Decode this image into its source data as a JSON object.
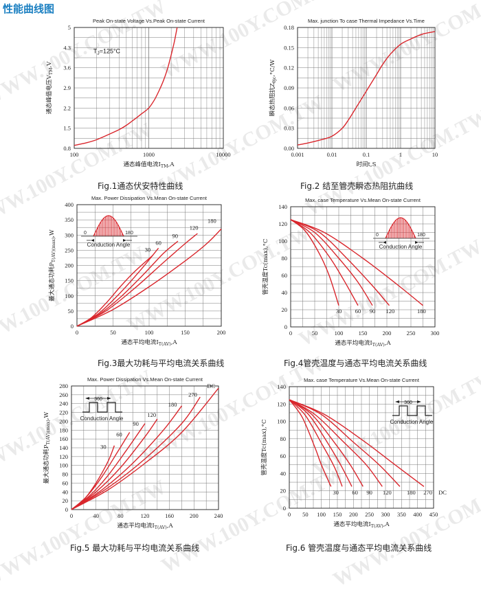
{
  "page": {
    "title": "性能曲线图",
    "watermark": "WWW.100Y.COM.TW"
  },
  "colors": {
    "curve": "#d9262c",
    "axis": "#222222",
    "grid": "#777777",
    "title_blue": "#1a7fc1"
  },
  "captions": [
    "Fig.1通态伏安特性曲线",
    "Fig.2 结至管壳瞬态热阻抗曲线",
    "Fig.3最大功耗与平均电流关系曲线",
    "Fig.4管壳温度与通态平均电流关系曲线",
    "Fig.5 最大功耗与平均电流关系曲线",
    "Fig.6 管壳温度与通态平均电流关系曲线"
  ],
  "chart_data": [
    {
      "type": "line",
      "title": "Peak On-state Voltage Vs.Peak On-state Current",
      "xlabel": "通态峰值电流I_TM,A",
      "ylabel": "通态峰值电压V_TM,V",
      "xscale": "log",
      "xlim": [
        100,
        10000
      ],
      "ylim": [
        0.8,
        5
      ],
      "xticks": [
        100,
        1000,
        10000
      ],
      "xtick_labels": [
        "100",
        "1000",
        "10000"
      ],
      "yticks": [
        0.8,
        1.5,
        2.2,
        2.9,
        3.6,
        4.3,
        5
      ],
      "ytick_labels": [
        "0.8",
        "1.5",
        "2.2",
        "2.9",
        "3.6",
        "4.3",
        "5"
      ],
      "grid": true,
      "annotations": [
        {
          "text": "T_J=125°C",
          "x": 180,
          "y": 4.1
        }
      ],
      "series": [
        {
          "x": [
            100,
            150,
            200,
            300,
            400,
            500,
            600,
            700,
            800,
            1000,
            1200,
            1400,
            1600,
            1800,
            2000,
            2200,
            2400
          ],
          "y": [
            0.9,
            1.0,
            1.1,
            1.3,
            1.45,
            1.6,
            1.75,
            1.88,
            2.0,
            2.2,
            2.5,
            2.85,
            3.2,
            3.6,
            4.05,
            4.5,
            5.0
          ]
        }
      ]
    },
    {
      "type": "line",
      "title": "Max. junction To case Thermal Impedance Vs.Time",
      "xlabel": "时间t,S",
      "ylabel": "瞬态热阻抗Z_θjc,°C/W",
      "xscale": "log",
      "xlim": [
        0.001,
        10
      ],
      "ylim": [
        0,
        0.18
      ],
      "xticks": [
        0.001,
        0.01,
        0.1,
        1,
        10
      ],
      "xtick_labels": [
        "0.001",
        "0.01",
        "0.1",
        "1",
        "10"
      ],
      "yticks": [
        0,
        0.03,
        0.06,
        0.09,
        0.12,
        0.15,
        0.18
      ],
      "ytick_labels": [
        "0.00",
        "0.03",
        "0.06",
        "0.09",
        "0.12",
        "0.15",
        "0.18"
      ],
      "grid": true,
      "series": [
        {
          "x": [
            0.001,
            0.002,
            0.005,
            0.01,
            0.02,
            0.03,
            0.05,
            0.1,
            0.2,
            0.3,
            0.5,
            1,
            2,
            3,
            5,
            10
          ],
          "y": [
            0.005,
            0.008,
            0.013,
            0.018,
            0.03,
            0.042,
            0.06,
            0.085,
            0.11,
            0.125,
            0.14,
            0.155,
            0.163,
            0.167,
            0.171,
            0.174
          ]
        }
      ]
    },
    {
      "type": "line",
      "title": "Max. Power Dissipation Vs.Mean On-state Current",
      "xlabel": "通态平均电流I_T(AV),A",
      "ylabel": "最大通态功耗P_T(AV)(max),W",
      "xlim": [
        0,
        200
      ],
      "ylim": [
        0,
        400
      ],
      "xticks": [
        0,
        50,
        100,
        150,
        200
      ],
      "xtick_labels": [
        "0",
        "50",
        "100",
        "150",
        "200"
      ],
      "yticks": [
        0,
        50,
        100,
        150,
        200,
        250,
        300,
        350,
        400
      ],
      "ytick_labels": [
        "0",
        "50",
        "100",
        "150",
        "200",
        "250",
        "300",
        "350",
        "400"
      ],
      "grid": true,
      "inset": {
        "kind": "sine",
        "labels": [
          "0",
          "180"
        ],
        "caption": "Conduction Angle"
      },
      "series": [
        {
          "name": "30",
          "x": [
            0,
            20,
            40,
            60,
            80,
            105
          ],
          "y": [
            0,
            28,
            75,
            130,
            180,
            233
          ]
        },
        {
          "name": "60",
          "x": [
            0,
            30,
            60,
            90,
            113
          ],
          "y": [
            0,
            42,
            110,
            190,
            257
          ]
        },
        {
          "name": "90",
          "x": [
            0,
            30,
            60,
            90,
            120,
            140
          ],
          "y": [
            0,
            38,
            95,
            165,
            240,
            280
          ]
        },
        {
          "name": "120",
          "x": [
            0,
            40,
            80,
            120,
            150,
            167
          ],
          "y": [
            0,
            50,
            125,
            210,
            272,
            305
          ]
        },
        {
          "name": "180",
          "x": [
            0,
            50,
            100,
            150,
            180,
            200
          ],
          "y": [
            0,
            55,
            130,
            215,
            272,
            320
          ]
        }
      ],
      "series_labels": [
        {
          "text": "30",
          "x": 98,
          "y": 245
        },
        {
          "text": "60",
          "x": 113,
          "y": 268
        },
        {
          "text": "90",
          "x": 136,
          "y": 290
        },
        {
          "text": "120",
          "x": 162,
          "y": 318
        },
        {
          "text": "180",
          "x": 187,
          "y": 340
        }
      ]
    },
    {
      "type": "line",
      "title": "Max. case Temperature Vs.Mean On-state Current",
      "xlabel": "通态平均电流I_T(AV),A",
      "ylabel": "管壳温度Tc(max),°C",
      "xlim": [
        0,
        300
      ],
      "ylim": [
        0,
        140
      ],
      "xticks": [
        0,
        50,
        100,
        150,
        200,
        250,
        300
      ],
      "xtick_labels": [
        "0",
        "50",
        "100",
        "150",
        "200",
        "250",
        "300"
      ],
      "yticks": [
        0,
        20,
        40,
        60,
        80,
        100,
        120,
        140
      ],
      "ytick_labels": [
        "0",
        "20",
        "40",
        "60",
        "80",
        "100",
        "120",
        "140"
      ],
      "grid": true,
      "inset": {
        "kind": "sine",
        "labels": [
          "0",
          "180"
        ],
        "caption": "Conduction Angle"
      },
      "series": [
        {
          "name": "30",
          "x": [
            0,
            30,
            60,
            80,
            100
          ],
          "y": [
            125,
            112,
            85,
            60,
            25
          ]
        },
        {
          "name": "60",
          "x": [
            0,
            40,
            80,
            110,
            140
          ],
          "y": [
            125,
            110,
            82,
            55,
            25
          ]
        },
        {
          "name": "90",
          "x": [
            0,
            50,
            100,
            140,
            170
          ],
          "y": [
            125,
            110,
            80,
            52,
            25
          ]
        },
        {
          "name": "120",
          "x": [
            0,
            60,
            120,
            170,
            205
          ],
          "y": [
            125,
            110,
            78,
            48,
            25
          ]
        },
        {
          "name": "180",
          "x": [
            0,
            70,
            150,
            220,
            275
          ],
          "y": [
            125,
            110,
            80,
            50,
            25
          ]
        }
      ],
      "series_labels": [
        {
          "text": "30",
          "x": 100,
          "y": 16
        },
        {
          "text": "60",
          "x": 140,
          "y": 16
        },
        {
          "text": "90",
          "x": 170,
          "y": 16
        },
        {
          "text": "120",
          "x": 207,
          "y": 16
        },
        {
          "text": "180",
          "x": 272,
          "y": 16
        }
      ]
    },
    {
      "type": "line",
      "title": "Max. Power Dissipation Vs.Mean On-state Current",
      "xlabel": "通态平均电流I_T(AV),A",
      "ylabel": "最大通态功耗P_T(AV)(max),W",
      "xlim": [
        0,
        240
      ],
      "ylim": [
        0,
        280
      ],
      "xticks": [
        0,
        40,
        80,
        120,
        160,
        200,
        240
      ],
      "xtick_labels": [
        "0",
        "40",
        "80",
        "120",
        "160",
        "200",
        "240"
      ],
      "yticks": [
        0,
        20,
        40,
        60,
        80,
        100,
        120,
        140,
        160,
        180,
        200,
        220,
        240,
        260,
        280
      ],
      "ytick_labels": [
        "0",
        "20",
        "40",
        "60",
        "80",
        "100",
        "120",
        "140",
        "160",
        "180",
        "200",
        "220",
        "240",
        "260",
        "280"
      ],
      "grid": true,
      "inset": {
        "kind": "square",
        "labels": [
          "360"
        ],
        "caption": "Conduction Angle"
      },
      "series": [
        {
          "name": "30",
          "x": [
            0,
            20,
            40,
            60,
            70
          ],
          "y": [
            0,
            22,
            60,
            110,
            145
          ]
        },
        {
          "name": "60",
          "x": [
            0,
            25,
            50,
            75,
            95
          ],
          "y": [
            0,
            30,
            75,
            130,
            175
          ]
        },
        {
          "name": "90",
          "x": [
            0,
            30,
            60,
            90,
            120
          ],
          "y": [
            0,
            32,
            78,
            135,
            195
          ]
        },
        {
          "name": "120",
          "x": [
            0,
            40,
            80,
            120,
            140
          ],
          "y": [
            0,
            40,
            95,
            165,
            205
          ]
        },
        {
          "name": "180",
          "x": [
            0,
            50,
            100,
            150,
            180
          ],
          "y": [
            0,
            45,
            105,
            180,
            235
          ]
        },
        {
          "name": "270",
          "x": [
            0,
            60,
            120,
            180,
            210
          ],
          "y": [
            0,
            50,
            115,
            195,
            255
          ]
        },
        {
          "name": "DC",
          "x": [
            0,
            60,
            120,
            180,
            240
          ],
          "y": [
            0,
            45,
            105,
            175,
            275
          ]
        }
      ],
      "series_labels": [
        {
          "text": "30",
          "x": 52,
          "y": 138
        },
        {
          "text": "60",
          "x": 78,
          "y": 166
        },
        {
          "text": "90",
          "x": 105,
          "y": 190
        },
        {
          "text": "120",
          "x": 131,
          "y": 210
        },
        {
          "text": "180",
          "x": 165,
          "y": 233
        },
        {
          "text": "270",
          "x": 198,
          "y": 256
        },
        {
          "text": "DC",
          "x": 228,
          "y": 275
        }
      ]
    },
    {
      "type": "line",
      "title": "Max. case Temperature Vs.Mean On-state Current",
      "xlabel": "通态平均电流I_T(AV),A",
      "ylabel": "管壳温度Tc(max),°C",
      "xlim": [
        0,
        450
      ],
      "ylim": [
        0,
        140
      ],
      "xticks": [
        0,
        50,
        100,
        150,
        200,
        250,
        300,
        350,
        400,
        450
      ],
      "xtick_labels": [
        "0",
        "50",
        "100",
        "150",
        "200",
        "250",
        "300",
        "350",
        "400",
        "450"
      ],
      "yticks": [
        0,
        20,
        40,
        60,
        80,
        100,
        120,
        140
      ],
      "ytick_labels": [
        "0",
        "20",
        "40",
        "60",
        "80",
        "100",
        "120",
        "140"
      ],
      "grid": true,
      "inset": {
        "kind": "square",
        "labels": [
          "360"
        ],
        "caption": "Conduction Angle"
      },
      "series": [
        {
          "name": "30",
          "x": [
            0,
            40,
            80,
            100,
            130
          ],
          "y": [
            125,
            105,
            70,
            50,
            25
          ]
        },
        {
          "name": "60",
          "x": [
            0,
            50,
            100,
            140,
            165
          ],
          "y": [
            125,
            107,
            75,
            48,
            25
          ]
        },
        {
          "name": "90",
          "x": [
            0,
            60,
            120,
            160,
            195
          ],
          "y": [
            125,
            108,
            75,
            50,
            25
          ]
        },
        {
          "name": "120",
          "x": [
            0,
            70,
            140,
            190,
            230
          ],
          "y": [
            125,
            108,
            76,
            50,
            25
          ]
        },
        {
          "name": "180",
          "x": [
            0,
            80,
            170,
            240,
            290
          ],
          "y": [
            125,
            108,
            76,
            50,
            25
          ]
        },
        {
          "name": "270",
          "x": [
            0,
            100,
            200,
            280,
            345
          ],
          "y": [
            125,
            108,
            76,
            50,
            25
          ]
        },
        {
          "name": "DC",
          "x": [
            0,
            110,
            230,
            330,
            420
          ],
          "y": [
            125,
            108,
            78,
            50,
            25
          ]
        }
      ],
      "series_labels": [
        {
          "text": "30",
          "x": 145,
          "y": 16
        },
        {
          "text": "60",
          "x": 205,
          "y": 16
        },
        {
          "text": "90",
          "x": 250,
          "y": 16
        },
        {
          "text": "120",
          "x": 305,
          "y": 16
        },
        {
          "text": "180",
          "x": 380,
          "y": 16
        },
        {
          "text": "270",
          "x": 432,
          "y": 16
        },
        {
          "text": "DC",
          "x": 478,
          "y": 16
        }
      ]
    }
  ]
}
